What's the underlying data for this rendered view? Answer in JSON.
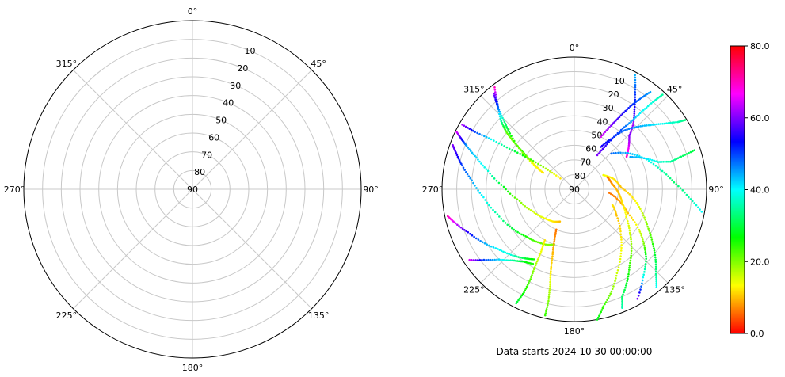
{
  "caption": "Data starts 2024 10 30 00:00:00",
  "colorbar": {
    "min": 0,
    "max": 80,
    "tick_labels": [
      "0.0",
      "20.0",
      "40.0",
      "60.0",
      "80.0"
    ],
    "colormap": [
      "#ff0000",
      "#ffff00",
      "#00ff00",
      "#00ffff",
      "#0000ff",
      "#ff00ff",
      "#ff0000"
    ]
  },
  "chart_data": [
    {
      "type": "scatter",
      "projection": "polar",
      "theta_zero": "N",
      "theta_direction": "clockwise",
      "r_range": [
        0,
        90
      ],
      "r_axis": "elevation (90 at center)",
      "theta_tick_labels": [
        "0°",
        "45°",
        "90°",
        "135°",
        "180°",
        "225°",
        "270°",
        "315°"
      ],
      "r_tick_labels": [
        "10",
        "20",
        "30",
        "40",
        "50",
        "60",
        "70",
        "80",
        "90"
      ],
      "grid": true,
      "series": []
    },
    {
      "type": "scatter",
      "projection": "polar",
      "theta_zero": "N",
      "theta_direction": "clockwise",
      "r_range": [
        0,
        90
      ],
      "r_axis": "elevation (90 at center)",
      "theta_tick_labels": [
        "0°",
        "45°",
        "90°",
        "135°",
        "180°",
        "225°",
        "270°",
        "315°"
      ],
      "r_tick_labels": [
        "10",
        "20",
        "30",
        "40",
        "50",
        "60",
        "70",
        "80",
        "90"
      ],
      "grid": true,
      "color_axis": [
        0,
        80
      ],
      "tracks": [
        {
          "points": [
            [
              322,
              2,
              70
            ],
            [
              318,
              12,
              50
            ],
            [
              313,
              22,
              35
            ],
            [
              310,
              30,
              22
            ],
            [
              308,
              38,
              20
            ],
            [
              306,
              47,
              25
            ],
            [
              303,
              55,
              15
            ],
            [
              300,
              62,
              10
            ]
          ]
        },
        {
          "points": [
            [
              320,
              5,
              60
            ],
            [
              317,
              14,
              48
            ],
            [
              314,
              24,
              33
            ],
            [
              311,
              32,
              28
            ],
            [
              306,
              45,
              20
            ],
            [
              301,
              58,
              14
            ],
            [
              298,
              66,
              12
            ]
          ]
        },
        {
          "points": [
            [
              300,
              2,
              62
            ],
            [
              300,
              12,
              50
            ],
            [
              301,
              24,
              40
            ],
            [
              302,
              38,
              32
            ],
            [
              304,
              52,
              25
            ],
            [
              306,
              66,
              18
            ],
            [
              308,
              78,
              12
            ]
          ]
        },
        {
          "points": [
            [
              296,
              1,
              65
            ],
            [
              294,
              6,
              55
            ],
            [
              292,
              11,
              45
            ],
            [
              288,
              20,
              42
            ],
            [
              282,
              30,
              38
            ],
            [
              272,
              42,
              28
            ],
            [
              258,
              52,
              20
            ],
            [
              242,
              58,
              16
            ],
            [
              225,
              62,
              14
            ],
            [
              212,
              64,
              12
            ],
            [
              204,
              66,
              10
            ]
          ]
        },
        {
          "points": [
            [
              290,
              2,
              60
            ],
            [
              287,
              6,
              56
            ],
            [
              282,
              12,
              50
            ],
            [
              275,
              20,
              45
            ],
            [
              265,
              28,
              40
            ],
            [
              252,
              35,
              35
            ],
            [
              238,
              40,
              30
            ],
            [
              226,
              44,
              26
            ],
            [
              216,
              46,
              22
            ],
            [
              206,
              48,
              20
            ],
            [
              200,
              50,
              20
            ]
          ]
        },
        {
          "points": [
            [
              258,
              2,
              70
            ],
            [
              254,
              6,
              64
            ],
            [
              248,
              12,
              55
            ],
            [
              240,
              18,
              45
            ],
            [
              232,
              24,
              40
            ],
            [
              224,
              28,
              38
            ],
            [
              216,
              32,
              30
            ],
            [
              210,
              35,
              26
            ]
          ]
        },
        {
          "points": [
            [
              236,
              4,
              65
            ],
            [
              232,
              12,
              50
            ],
            [
              227,
              20,
              42
            ],
            [
              221,
              26,
              35
            ],
            [
              215,
              30,
              28
            ],
            [
              209,
              32,
              25
            ]
          ]
        },
        {
          "points": [
            [
              28,
              2,
              44
            ],
            [
              32,
              12,
              50
            ],
            [
              37,
              22,
              55
            ],
            [
              42,
              30,
              62
            ],
            [
              46,
              38,
              60
            ],
            [
              52,
              43,
              65
            ],
            [
              58,
              48,
              70
            ]
          ]
        },
        {
          "points": [
            [
              38,
              6,
              45
            ],
            [
              36,
              14,
              48
            ],
            [
              34,
              22,
              52
            ],
            [
              32,
              32,
              56
            ],
            [
              30,
              40,
              60
            ],
            [
              27,
              50,
              65
            ]
          ]
        },
        {
          "points": [
            [
              43,
              2,
              35
            ],
            [
              42,
              10,
              38
            ],
            [
              41,
              20,
              40
            ],
            [
              40,
              30,
              45
            ],
            [
              38,
              40,
              50
            ],
            [
              36,
              52,
              55
            ],
            [
              34,
              62,
              60
            ]
          ]
        },
        {
          "points": [
            [
              58,
              1,
              33
            ],
            [
              57,
              6,
              36
            ],
            [
              54,
              14,
              39
            ],
            [
              50,
              22,
              42
            ],
            [
              45,
              30,
              45
            ],
            [
              40,
              38,
              48
            ],
            [
              36,
              48,
              52
            ],
            [
              32,
              56,
              55
            ]
          ]
        },
        {
          "points": [
            [
              100,
              2,
              40
            ],
            [
              94,
              12,
              35
            ],
            [
              86,
              22,
              32
            ],
            [
              77,
              30,
              36
            ],
            [
              66,
              38,
              40
            ],
            [
              56,
              46,
              44
            ],
            [
              46,
              55,
              48
            ]
          ]
        },
        {
          "points": [
            [
              72,
              4,
              30
            ],
            [
              73,
              14,
              32
            ],
            [
              74,
              22,
              35
            ],
            [
              72,
              30,
              38
            ],
            [
              66,
              38,
              42
            ],
            [
              60,
              46,
              45
            ]
          ]
        },
        {
          "points": [
            [
              150,
              4,
              60
            ],
            [
              142,
              14,
              40
            ],
            [
              134,
              22,
              30
            ],
            [
              128,
              30,
              20
            ],
            [
              122,
              38,
              15
            ],
            [
              114,
              50,
              10
            ],
            [
              105,
              58,
              8
            ],
            [
              96,
              66,
              6
            ]
          ]
        },
        {
          "points": [
            [
              140,
              3,
              40
            ],
            [
              136,
              10,
              34
            ],
            [
              130,
              18,
              30
            ],
            [
              124,
              26,
              24
            ],
            [
              117,
              34,
              20
            ],
            [
              108,
              42,
              16
            ],
            [
              98,
              50,
              12
            ],
            [
              88,
              58,
              10
            ],
            [
              76,
              62,
              12
            ],
            [
              64,
              68,
              14
            ]
          ]
        },
        {
          "points": [
            [
              170,
              0,
              28
            ],
            [
              166,
              8,
              24
            ],
            [
              160,
              16,
              20
            ],
            [
              153,
              26,
              16
            ],
            [
              144,
              36,
              14
            ],
            [
              134,
              46,
              12
            ],
            [
              122,
              56,
              10
            ],
            [
              112,
              62,
              12
            ]
          ]
        },
        {
          "points": [
            [
              158,
              3,
              36
            ],
            [
              156,
              10,
              32
            ],
            [
              150,
              18,
              28
            ],
            [
              144,
              26,
              24
            ],
            [
              136,
              34,
              20
            ],
            [
              128,
              42,
              16
            ],
            [
              118,
              50,
              14
            ],
            [
              106,
              56,
              12
            ],
            [
              94,
              60,
              10
            ],
            [
              82,
              64,
              8
            ],
            [
              70,
              66,
              6
            ]
          ]
        },
        {
          "points": [
            [
              193,
              2,
              24
            ],
            [
              193,
              12,
              20
            ],
            [
              194,
              22,
              16
            ],
            [
              196,
              32,
              12
            ],
            [
              198,
              42,
              10
            ],
            [
              201,
              52,
              8
            ],
            [
              204,
              60,
              6
            ]
          ]
        },
        {
          "points": [
            [
              207,
              3,
              30
            ],
            [
              206,
              12,
              26
            ],
            [
              206,
              22,
              22
            ],
            [
              207,
              32,
              18
            ],
            [
              208,
              42,
              14
            ],
            [
              210,
              50,
              12
            ]
          ]
        }
      ]
    }
  ]
}
